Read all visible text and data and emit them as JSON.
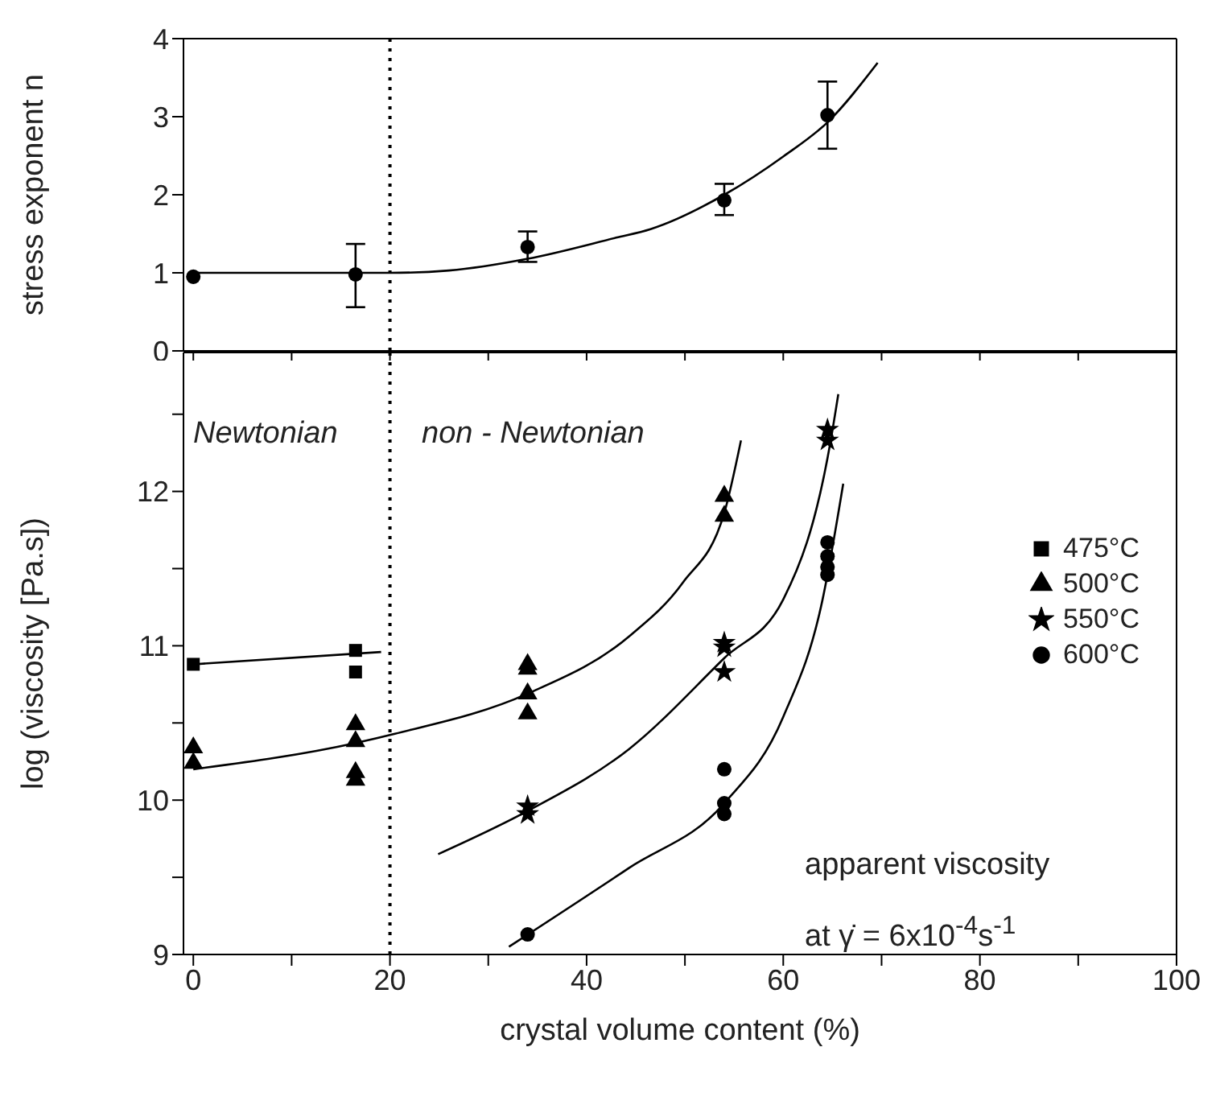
{
  "chart_data": [
    {
      "type": "scatter",
      "ylabel": "stress exponent n",
      "xlim": [
        -1,
        100
      ],
      "xticks": [
        0,
        {
          "value": 10,
          "label": null
        },
        20,
        {
          "value": 30,
          "label": null
        },
        40,
        {
          "value": 50,
          "label": null
        },
        60,
        {
          "value": 70,
          "label": null
        },
        80,
        {
          "value": 90,
          "label": null
        },
        100
      ],
      "ylim": [
        0,
        4
      ],
      "yticks": [
        0,
        1,
        2,
        3,
        4
      ],
      "tick_labels": "y",
      "legend": false,
      "ref_lines": [
        {
          "axis": "x",
          "value": 20,
          "line_style": "dotted",
          "color": "#000000"
        }
      ],
      "series": [
        {
          "type": "scatter",
          "marker": "circle",
          "color": "#000000",
          "x": [
            0,
            16.5,
            34,
            54,
            64.5
          ],
          "values": [
            0.95,
            0.98,
            1.33,
            1.93,
            3.02
          ],
          "errors": [
            null,
            [
              0.56,
              1.37
            ],
            [
              1.14,
              1.53
            ],
            [
              1.74,
              2.14
            ],
            [
              2.59,
              3.45
            ]
          ]
        },
        {
          "type": "line",
          "marker": "none",
          "line_style": "solid",
          "color": "#000000",
          "x": [
            0,
            9,
            20,
            26,
            34,
            43,
            46.5,
            54,
            60,
            64.6,
            69.6
          ],
          "values": [
            1.0,
            1.0,
            1.0,
            1.03,
            1.18,
            1.45,
            1.56,
            2.0,
            2.49,
            2.94,
            3.69
          ]
        }
      ]
    },
    {
      "type": "scatter",
      "xlabel": "crystal volume content (%)",
      "ylabel": "log (viscosity [Pa.s])",
      "xlim": [
        -1,
        100
      ],
      "xticks": [
        0,
        {
          "value": 10,
          "label": null
        },
        20,
        {
          "value": 30,
          "label": null
        },
        40,
        {
          "value": 50,
          "label": null
        },
        60,
        {
          "value": 70,
          "label": null
        },
        80,
        {
          "value": 90,
          "label": null
        },
        100
      ],
      "ylim": [
        9,
        12.9
      ],
      "yticks": [
        9,
        {
          "value": 9.5,
          "label": null
        },
        10,
        {
          "value": 10.5,
          "label": null
        },
        11,
        {
          "value": 11.5,
          "label": null
        },
        12,
        {
          "value": 12.5,
          "label": null
        }
      ],
      "legend": "right",
      "ref_lines": [
        {
          "axis": "x",
          "value": 20,
          "line_style": "dotted",
          "color": "#000000"
        }
      ],
      "annotations": [
        "Newtonian",
        "non - Newtonian",
        "apparent viscosity",
        "at γ̇ = 6x10$^{-4}$s$^{-1}$"
      ],
      "series": [
        {
          "type": "scatter",
          "name": "475°C",
          "marker": "square",
          "color": "#000000",
          "x": [
            0,
            16.5,
            16.5
          ],
          "values": [
            10.88,
            10.97,
            10.83
          ]
        },
        {
          "type": "scatter",
          "name": "500°C",
          "marker": "triangle",
          "color": "#000000",
          "x": [
            0,
            0,
            16.5,
            16.5,
            16.5,
            16.5,
            34,
            34,
            34,
            34,
            54,
            54
          ],
          "values": [
            10.34,
            10.24,
            10.49,
            10.38,
            10.18,
            10.13,
            10.88,
            10.85,
            10.69,
            10.56,
            11.97,
            11.84
          ]
        },
        {
          "type": "scatter",
          "name": "550°C",
          "marker": "star",
          "color": "#000000",
          "x": [
            34,
            34,
            54,
            54,
            54,
            64.5,
            64.5
          ],
          "values": [
            9.96,
            9.91,
            11.02,
            10.99,
            10.83,
            12.4,
            12.33
          ]
        },
        {
          "type": "scatter",
          "name": "600°C",
          "marker": "circle",
          "color": "#000000",
          "x": [
            34,
            54,
            54,
            54,
            64.5,
            64.5,
            64.5,
            64.5
          ],
          "values": [
            9.13,
            10.2,
            9.98,
            9.91,
            11.67,
            11.58,
            11.51,
            11.46
          ]
        },
        {
          "type": "line",
          "marker": "none",
          "line_style": "solid",
          "color": "#000000",
          "x": [
            0,
            19.1
          ],
          "values": [
            10.88,
            10.96
          ]
        },
        {
          "type": "line",
          "marker": "none",
          "line_style": "solid",
          "color": "#000000",
          "x": [
            0,
            16.5,
            20.5,
            34,
            44.3,
            49.8,
            54,
            55.7
          ],
          "values": [
            10.2,
            10.37,
            10.43,
            10.69,
            11.06,
            11.41,
            11.86,
            12.33
          ]
        },
        {
          "type": "line",
          "marker": "none",
          "line_style": "solid",
          "color": "#000000",
          "x": [
            24.9,
            34,
            44.3,
            54,
            60,
            64.8,
            65.6
          ],
          "values": [
            9.65,
            9.93,
            10.33,
            10.92,
            11.3,
            12.32,
            12.63
          ]
        },
        {
          "type": "line",
          "marker": "none",
          "line_style": "solid",
          "color": "#000000",
          "x": [
            32.1,
            44.3,
            54,
            60,
            64,
            66.1
          ],
          "values": [
            9.05,
            9.56,
            9.98,
            10.54,
            11.3,
            12.05
          ]
        }
      ]
    }
  ]
}
